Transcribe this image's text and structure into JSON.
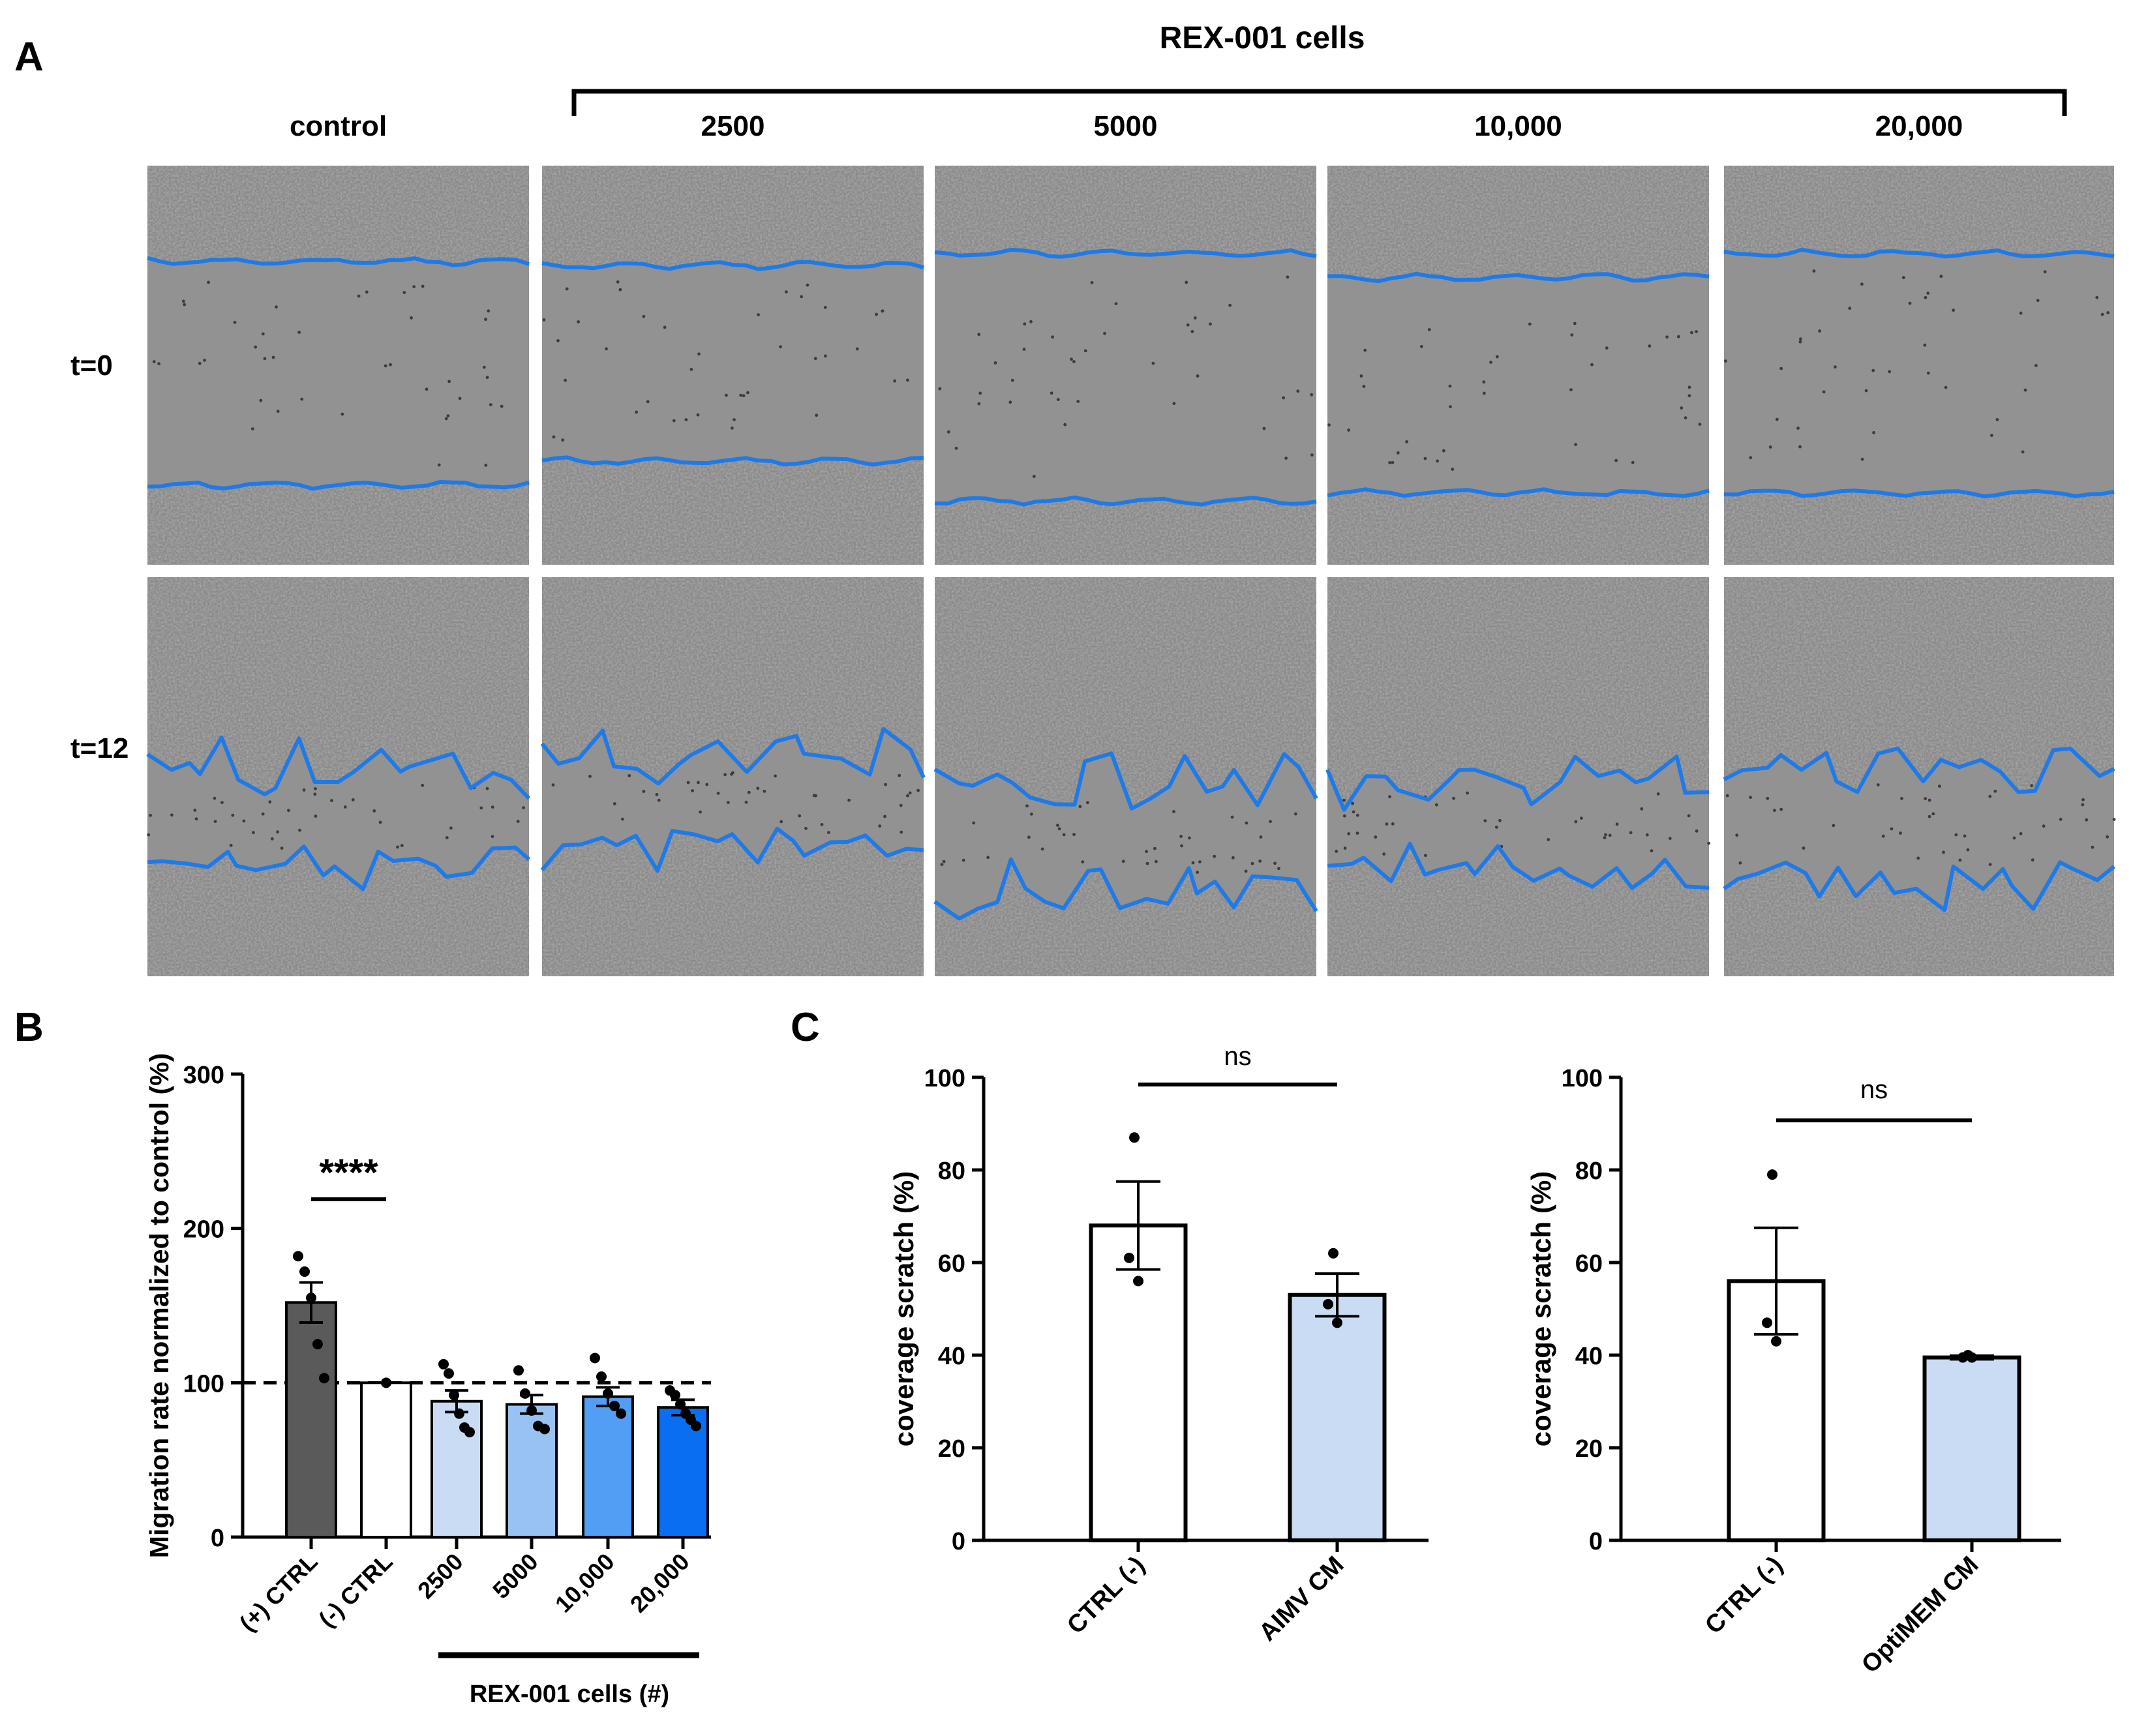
{
  "panel_a": {
    "letter": "A",
    "group_label": "REX-001 cells",
    "columns": [
      "control",
      "2500",
      "5000",
      "10,000",
      "20,000"
    ],
    "rows": [
      "t=0",
      "t=12"
    ]
  },
  "panel_b": {
    "letter": "B",
    "significance": "****",
    "group_label": "REX-001 cells (#)"
  },
  "panel_c": {
    "letter": "C"
  },
  "colors": {
    "outline": "#1f7ae8",
    "micro_bg": "#8a8a8a",
    "bar_dark": "#5a5a5a",
    "bar_light": "#c9dcf4",
    "bar_mid": "#98c2f2",
    "bar_mid2": "#519ef4",
    "bar_strong": "#0a6ef2"
  },
  "chart_data": [
    {
      "type": "bar",
      "panel": "B",
      "categories": [
        "(+) CTRL",
        "(-) CTRL",
        "2500",
        "5000",
        "10,000",
        "20,000"
      ],
      "values": [
        152,
        100,
        88,
        86,
        91,
        84
      ],
      "errors": [
        13,
        0,
        7,
        6,
        6,
        5
      ],
      "points": [
        [
          182,
          172,
          155,
          125,
          103
        ],
        [
          100
        ],
        [
          112,
          106,
          92,
          80,
          71,
          68
        ],
        [
          108,
          93,
          82,
          72,
          70
        ],
        [
          116,
          104,
          93,
          85,
          80
        ],
        [
          95,
          92,
          86,
          80,
          76,
          72
        ]
      ],
      "colors": [
        "#5a5a5a",
        "#ffffff",
        "#c9dcf4",
        "#98c2f2",
        "#519ef4",
        "#0a6ef2"
      ],
      "reference_line": 100,
      "ylabel": "Migration rate normalized to control (%)",
      "ylim": [
        0,
        300
      ],
      "yticks": [
        0,
        100,
        200,
        300
      ],
      "annotation": "****"
    },
    {
      "type": "bar",
      "panel": "C-left",
      "categories": [
        "CTRL (-)",
        "AIMV CM"
      ],
      "values": [
        68,
        53
      ],
      "errors": [
        9.5,
        4.6
      ],
      "points": [
        [
          87,
          61,
          56
        ],
        [
          62,
          51,
          47
        ]
      ],
      "colors": [
        "#ffffff",
        "#c9dcf4"
      ],
      "ylabel": "coverage scratch (%)",
      "ylim": [
        0,
        100
      ],
      "yticks": [
        0,
        20,
        40,
        60,
        80,
        100
      ],
      "annotation": "ns"
    },
    {
      "type": "bar",
      "panel": "C-right",
      "categories": [
        "CTRL (-)",
        "OptiMEM CM"
      ],
      "values": [
        56,
        39.5
      ],
      "errors": [
        11.5,
        0.4
      ],
      "points": [
        [
          79,
          47,
          43
        ],
        [
          40,
          39.5,
          39.5
        ]
      ],
      "colors": [
        "#ffffff",
        "#c9dcf4"
      ],
      "ylabel": "coverage scratch (%)",
      "ylim": [
        0,
        100
      ],
      "yticks": [
        0,
        20,
        40,
        60,
        80,
        100
      ],
      "annotation": "ns"
    }
  ]
}
